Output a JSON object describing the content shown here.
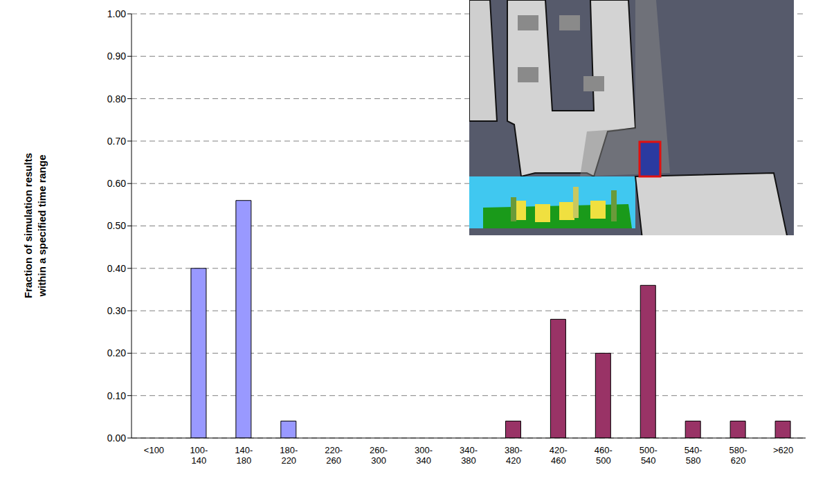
{
  "chart_data": {
    "type": "bar",
    "ylabel": "Fraction of simulation results within a specified time range",
    "categories": [
      "<100",
      "100-140",
      "140-180",
      "180-220",
      "220-260",
      "260-300",
      "300-340",
      "340-380",
      "380-420",
      "420-460",
      "460-500",
      "500-540",
      "540-580",
      "580-620",
      ">620"
    ],
    "values": [
      0,
      0.4,
      0.56,
      0.04,
      0,
      0,
      0,
      0,
      0.04,
      0.28,
      0.2,
      0.36,
      0.04,
      0.04,
      0.04
    ],
    "colors": [
      "#9999ff",
      "#9999ff",
      "#9999ff",
      "#9999ff",
      "#993366",
      "#993366",
      "#993366",
      "#993366",
      "#993366",
      "#993366",
      "#993366",
      "#993366",
      "#993366",
      "#993366",
      "#993366"
    ],
    "ylim": [
      0,
      1
    ],
    "yticks": [
      {
        "value": 0,
        "label": "0.00"
      },
      {
        "value": 0.1,
        "label": "0.10"
      },
      {
        "value": 0.2,
        "label": "0.20"
      },
      {
        "value": 0.3,
        "label": "0.30"
      },
      {
        "value": 0.4,
        "label": "0.40"
      },
      {
        "value": 0.5,
        "label": "0.50"
      },
      {
        "value": 0.6,
        "label": "0.60"
      },
      {
        "value": 0.7,
        "label": "0.70"
      },
      {
        "value": 0.8,
        "label": "0.80"
      },
      {
        "value": 0.9,
        "label": "0.90"
      },
      {
        "value": 1,
        "label": "1.00"
      }
    ],
    "grid": true
  }
}
